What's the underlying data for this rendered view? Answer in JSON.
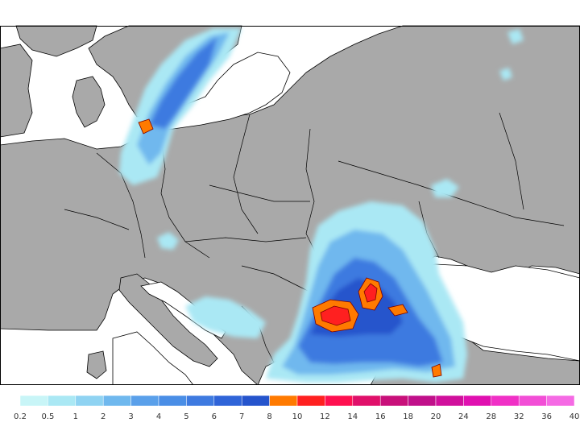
{
  "map": {
    "colors": {
      "land": "#a9a9a9",
      "sea": "#ffffff",
      "border": "#000000"
    }
  },
  "legend": {
    "swatches": [
      "#c8f5f7",
      "#aae8f4",
      "#8fd3f2",
      "#6fb8ee",
      "#5aa0ea",
      "#4a8ee6",
      "#3e7ae0",
      "#2f64d8",
      "#2554cc",
      "#ff7a00",
      "#ff2020",
      "#ff1050",
      "#e0106a",
      "#c8107a",
      "#c0108a",
      "#d0109c",
      "#e010b0",
      "#f030c6",
      "#f24ed6",
      "#f56ae4"
    ],
    "labels": [
      "0.2",
      "0.5",
      "1",
      "2",
      "3",
      "4",
      "5",
      "6",
      "7",
      "8",
      "10",
      "12",
      "14",
      "16",
      "18",
      "20",
      "24",
      "28",
      "32",
      "36",
      "40"
    ]
  }
}
